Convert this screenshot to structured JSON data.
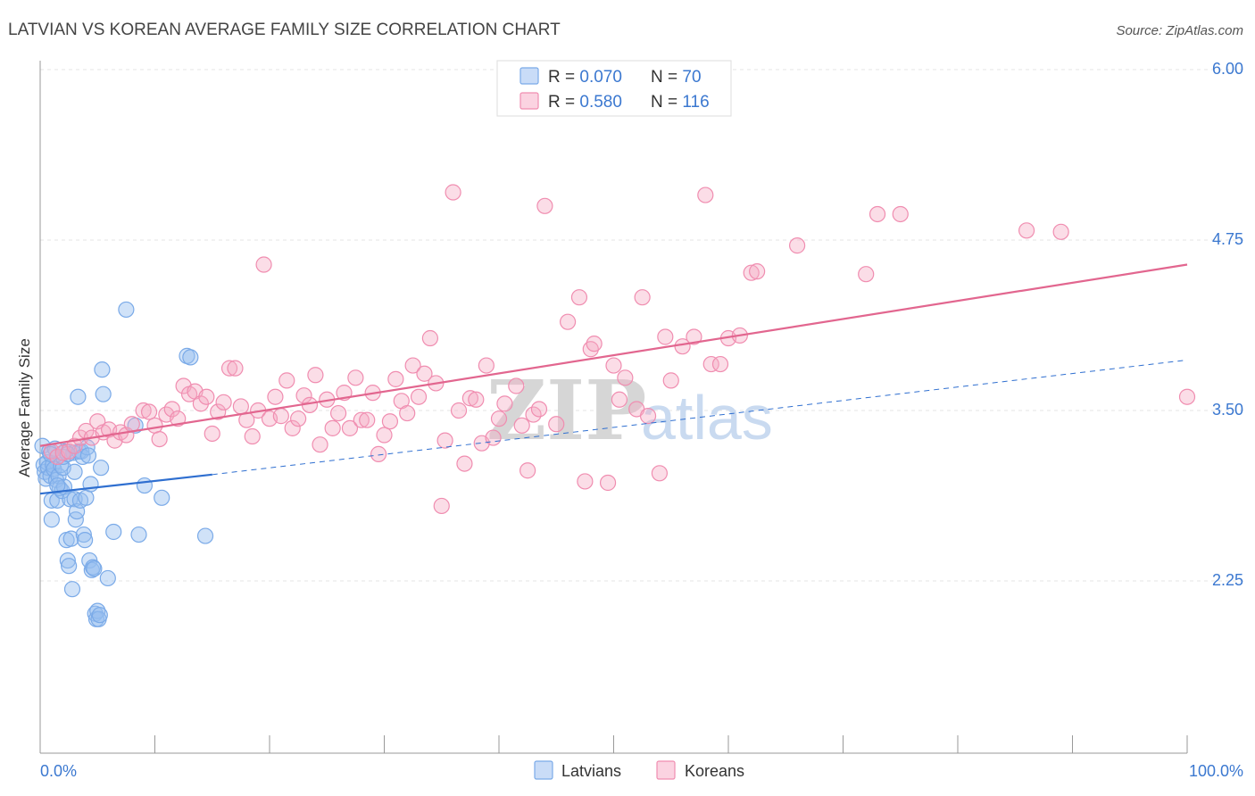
{
  "header": {
    "title": "LATVIAN VS KOREAN AVERAGE FAMILY SIZE CORRELATION CHART",
    "source": "Source: ZipAtlas.com"
  },
  "watermark": {
    "zip": "ZIP",
    "atlas": "atlas"
  },
  "legend_top": {
    "rows": [
      {
        "r_label": "R = ",
        "r_value": "0.070",
        "n_label": "N = ",
        "n_value": "70",
        "color": "#7aaae8"
      },
      {
        "r_label": "R = ",
        "r_value": "0.580",
        "n_label": "N = ",
        "n_value": "116",
        "color": "#f08db0"
      }
    ]
  },
  "legend_bottom": {
    "items": [
      {
        "label": "Latvians",
        "color": "#7aaae8"
      },
      {
        "label": "Koreans",
        "color": "#f08db0"
      }
    ]
  },
  "chart_data": {
    "type": "scatter",
    "title": "LATVIAN VS KOREAN AVERAGE FAMILY SIZE CORRELATION CHART",
    "xlabel": "",
    "ylabel": "Average Family Size",
    "xlim": [
      0,
      100
    ],
    "ylim": [
      1.0,
      6.15
    ],
    "x_tick_labels": [
      "0.0%",
      "100.0%"
    ],
    "y_ticks": [
      2.25,
      3.5,
      4.75,
      6.0
    ],
    "y_tick_labels": [
      "2.25",
      "3.50",
      "4.75",
      "6.00"
    ],
    "grid": true,
    "legend_position": "top-center",
    "series": [
      {
        "name": "Latvians",
        "color": "#7aaae8",
        "line_color": "#2f6fd0",
        "trend": {
          "x": [
            0,
            15
          ],
          "y": [
            2.89,
            3.03
          ]
        },
        "trend_extension": {
          "x": [
            15,
            100
          ],
          "y": [
            3.03,
            3.87
          ]
        },
        "points": [
          [
            0.2,
            3.24
          ],
          [
            0.3,
            3.1
          ],
          [
            0.4,
            3.05
          ],
          [
            0.5,
            3.0
          ],
          [
            0.6,
            3.12
          ],
          [
            0.7,
            3.08
          ],
          [
            0.8,
            3.2
          ],
          [
            0.9,
            3.02
          ],
          [
            1.0,
            2.84
          ],
          [
            1.0,
            2.7
          ],
          [
            1.1,
            3.1
          ],
          [
            1.2,
            3.07
          ],
          [
            1.3,
            3.22
          ],
          [
            1.4,
            2.99
          ],
          [
            1.5,
            2.84
          ],
          [
            1.6,
            3.02
          ],
          [
            1.7,
            2.93
          ],
          [
            1.8,
            3.1
          ],
          [
            1.9,
            2.91
          ],
          [
            2.0,
            3.08
          ],
          [
            2.1,
            2.94
          ],
          [
            2.2,
            3.2
          ],
          [
            2.3,
            2.55
          ],
          [
            2.4,
            2.4
          ],
          [
            2.5,
            2.36
          ],
          [
            2.6,
            2.85
          ],
          [
            2.7,
            2.56
          ],
          [
            2.8,
            2.19
          ],
          [
            2.9,
            3.19
          ],
          [
            3.0,
            2.85
          ],
          [
            3.1,
            2.7
          ],
          [
            3.2,
            2.76
          ],
          [
            3.3,
            3.6
          ],
          [
            3.4,
            3.2
          ],
          [
            3.5,
            2.84
          ],
          [
            3.6,
            3.2
          ],
          [
            3.7,
            3.16
          ],
          [
            3.8,
            2.59
          ],
          [
            3.9,
            2.55
          ],
          [
            4.0,
            2.86
          ],
          [
            4.1,
            3.23
          ],
          [
            4.2,
            3.17
          ],
          [
            4.3,
            2.4
          ],
          [
            4.4,
            2.96
          ],
          [
            4.5,
            2.33
          ],
          [
            4.6,
            2.35
          ],
          [
            4.7,
            2.34
          ],
          [
            4.8,
            2.01
          ],
          [
            4.9,
            1.97
          ],
          [
            5.0,
            2.03
          ],
          [
            5.1,
            1.97
          ],
          [
            5.2,
            2.0
          ],
          [
            5.3,
            3.08
          ],
          [
            5.4,
            3.8
          ],
          [
            5.5,
            3.62
          ],
          [
            5.9,
            2.27
          ],
          [
            6.4,
            2.61
          ],
          [
            7.5,
            4.24
          ],
          [
            8.3,
            3.39
          ],
          [
            8.6,
            2.59
          ],
          [
            9.1,
            2.95
          ],
          [
            10.6,
            2.86
          ],
          [
            12.8,
            3.9
          ],
          [
            13.1,
            3.89
          ],
          [
            14.4,
            2.58
          ],
          [
            2.0,
            3.16
          ],
          [
            1.5,
            2.95
          ],
          [
            0.9,
            3.18
          ],
          [
            2.4,
            3.18
          ],
          [
            3.0,
            3.05
          ]
        ]
      },
      {
        "name": "Koreans",
        "color": "#f08db0",
        "line_color": "#e2668f",
        "trend": {
          "x": [
            0,
            100
          ],
          "y": [
            3.24,
            4.57
          ]
        },
        "points": [
          [
            1.0,
            3.2
          ],
          [
            1.5,
            3.16
          ],
          [
            2.0,
            3.19
          ],
          [
            2.5,
            3.2
          ],
          [
            3.0,
            3.24
          ],
          [
            3.5,
            3.3
          ],
          [
            4.0,
            3.35
          ],
          [
            4.5,
            3.3
          ],
          [
            5.0,
            3.42
          ],
          [
            5.5,
            3.34
          ],
          [
            6.0,
            3.36
          ],
          [
            6.5,
            3.28
          ],
          [
            7.0,
            3.34
          ],
          [
            7.5,
            3.32
          ],
          [
            8.0,
            3.4
          ],
          [
            9.0,
            3.5
          ],
          [
            9.5,
            3.49
          ],
          [
            10.0,
            3.39
          ],
          [
            10.4,
            3.29
          ],
          [
            11.0,
            3.47
          ],
          [
            11.5,
            3.51
          ],
          [
            12.0,
            3.44
          ],
          [
            12.5,
            3.68
          ],
          [
            13.0,
            3.62
          ],
          [
            13.5,
            3.64
          ],
          [
            14.0,
            3.55
          ],
          [
            14.5,
            3.6
          ],
          [
            15.0,
            3.33
          ],
          [
            15.5,
            3.49
          ],
          [
            16.0,
            3.56
          ],
          [
            16.5,
            3.81
          ],
          [
            17.0,
            3.81
          ],
          [
            17.5,
            3.53
          ],
          [
            18.0,
            3.43
          ],
          [
            18.5,
            3.31
          ],
          [
            19.0,
            3.5
          ],
          [
            19.5,
            4.57
          ],
          [
            20.0,
            3.44
          ],
          [
            20.5,
            3.6
          ],
          [
            21.0,
            3.46
          ],
          [
            21.5,
            3.72
          ],
          [
            22.0,
            3.37
          ],
          [
            22.5,
            3.44
          ],
          [
            23.0,
            3.61
          ],
          [
            23.5,
            3.54
          ],
          [
            24.0,
            3.76
          ],
          [
            24.4,
            3.25
          ],
          [
            25.0,
            3.58
          ],
          [
            25.5,
            3.37
          ],
          [
            26.0,
            3.48
          ],
          [
            26.5,
            3.63
          ],
          [
            27.0,
            3.37
          ],
          [
            27.5,
            3.74
          ],
          [
            28.0,
            3.43
          ],
          [
            28.5,
            3.43
          ],
          [
            29.0,
            3.63
          ],
          [
            29.5,
            3.18
          ],
          [
            30.0,
            3.32
          ],
          [
            30.5,
            3.42
          ],
          [
            31.0,
            3.73
          ],
          [
            31.5,
            3.57
          ],
          [
            32.0,
            3.48
          ],
          [
            32.5,
            3.83
          ],
          [
            33.0,
            3.6
          ],
          [
            33.5,
            3.77
          ],
          [
            34.0,
            4.03
          ],
          [
            34.5,
            3.7
          ],
          [
            35.0,
            2.8
          ],
          [
            35.3,
            3.28
          ],
          [
            36.0,
            5.1
          ],
          [
            36.5,
            3.5
          ],
          [
            37.0,
            3.11
          ],
          [
            37.5,
            3.59
          ],
          [
            38.0,
            3.58
          ],
          [
            38.5,
            3.26
          ],
          [
            38.9,
            3.83
          ],
          [
            39.5,
            3.3
          ],
          [
            40.0,
            3.44
          ],
          [
            40.5,
            3.55
          ],
          [
            41.5,
            3.68
          ],
          [
            42.0,
            3.39
          ],
          [
            42.5,
            3.06
          ],
          [
            43.0,
            3.47
          ],
          [
            43.5,
            3.51
          ],
          [
            44.0,
            5.0
          ],
          [
            45.0,
            3.4
          ],
          [
            46.0,
            4.15
          ],
          [
            47.0,
            4.33
          ],
          [
            47.5,
            2.98
          ],
          [
            48.0,
            3.95
          ],
          [
            48.3,
            3.99
          ],
          [
            49.5,
            2.97
          ],
          [
            50.0,
            3.83
          ],
          [
            50.5,
            3.58
          ],
          [
            51.0,
            3.74
          ],
          [
            52.0,
            3.51
          ],
          [
            52.5,
            4.33
          ],
          [
            53.0,
            3.46
          ],
          [
            54.0,
            3.04
          ],
          [
            54.5,
            4.04
          ],
          [
            55.0,
            3.72
          ],
          [
            56.0,
            3.97
          ],
          [
            57.0,
            4.04
          ],
          [
            58.0,
            5.08
          ],
          [
            58.5,
            3.84
          ],
          [
            59.3,
            3.84
          ],
          [
            60.0,
            4.03
          ],
          [
            61.0,
            4.05
          ],
          [
            62.0,
            4.51
          ],
          [
            62.5,
            4.52
          ],
          [
            66.0,
            4.71
          ],
          [
            72.0,
            4.5
          ],
          [
            73.0,
            4.94
          ],
          [
            75.0,
            4.94
          ],
          [
            86.0,
            4.82
          ],
          [
            89.0,
            4.81
          ],
          [
            100.0,
            3.6
          ]
        ]
      }
    ]
  }
}
